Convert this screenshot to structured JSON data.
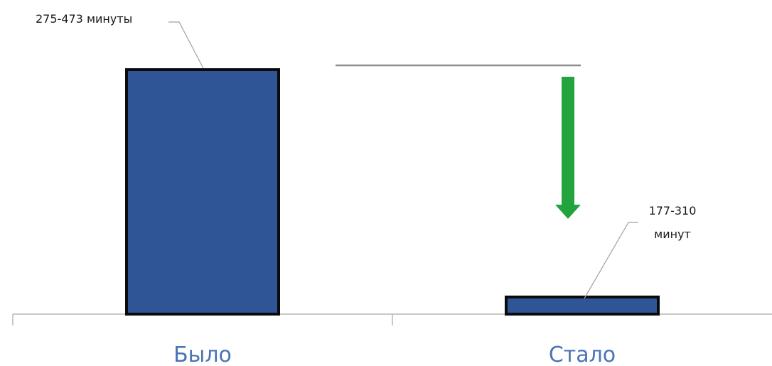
{
  "colors": {
    "bar_fill": "#2f5597",
    "bar_stroke": "#0b0b0b",
    "axis": "#b7b7b7",
    "leader": "#a0a0a0",
    "reference_line": "#8c8c8c",
    "arrow": "#22a33c",
    "category_text": "#4a74b5"
  },
  "chart_data": {
    "type": "bar",
    "categories": [
      "Было",
      "Стало"
    ],
    "values": [
      100,
      7
    ],
    "data_labels": [
      [
        "275-473 минуты"
      ],
      [
        "177-310",
        "минут"
      ]
    ],
    "title": "",
    "xlabel": "",
    "ylabel": "",
    "ylim": [
      0,
      100
    ],
    "grid": false,
    "annotations": [
      "horizontal reference line at the level of Было",
      "green downward arrow"
    ]
  }
}
